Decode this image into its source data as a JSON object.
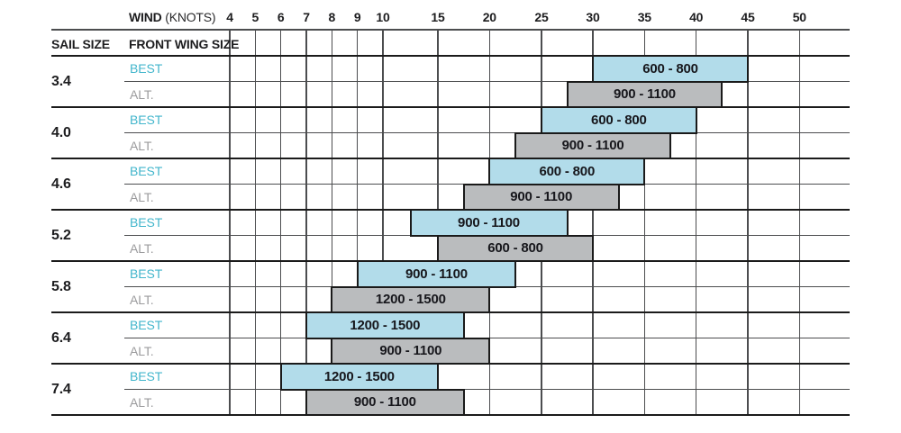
{
  "header": {
    "wind": "WIND",
    "knots": "(KNOTS)",
    "sail_size": "SAIL SIZE",
    "front_wing_size": "FRONT WING SIZE"
  },
  "row_labels": {
    "best": "BEST",
    "alt": "ALT."
  },
  "colors": {
    "best_bar_fill": "#b2dcea",
    "alt_bar_fill": "#babcbe",
    "bar_border": "#1a1a1a",
    "best_label_text": "#43b6cc",
    "alt_label_text": "#9b9b9d",
    "grid_line": "#4c4d4f",
    "group_line": "#1b1b1b",
    "bar_label_text": "#17171c"
  },
  "chart_data": {
    "type": "bar",
    "title": "Sail size vs wind speed — recommended front wing size ranges",
    "xlabel": "WIND (KNOTS)",
    "x_ticks": [
      4,
      5,
      6,
      7,
      8,
      9,
      10,
      15,
      20,
      25,
      30,
      35,
      40,
      45,
      50
    ],
    "x_scale_note": "1-knot column spacing from 4 to 10, 5-knot column spacing from 10 to 50",
    "legend_note": "BEST rows are blue bars, ALT. rows are gray bars; bar label is front wing size range",
    "rows": [
      {
        "sail_size": "3.4",
        "bars": [
          {
            "type": "best",
            "wing_size": "600 - 800",
            "from": 30,
            "to": 45
          },
          {
            "type": "alt",
            "wing_size": "900 - 1100",
            "from": 27.5,
            "to": 42.5
          }
        ]
      },
      {
        "sail_size": "4.0",
        "bars": [
          {
            "type": "best",
            "wing_size": "600 - 800",
            "from": 25,
            "to": 40
          },
          {
            "type": "alt",
            "wing_size": "900 - 1100",
            "from": 22.5,
            "to": 37.5
          }
        ]
      },
      {
        "sail_size": "4.6",
        "bars": [
          {
            "type": "best",
            "wing_size": "600 - 800",
            "from": 20,
            "to": 35
          },
          {
            "type": "alt",
            "wing_size": "900 - 1100",
            "from": 17.5,
            "to": 32.5
          }
        ]
      },
      {
        "sail_size": "5.2",
        "bars": [
          {
            "type": "best",
            "wing_size": "900 - 1100",
            "from": 12.5,
            "to": 27.5
          },
          {
            "type": "alt",
            "wing_size": "600 - 800",
            "from": 15,
            "to": 30
          }
        ]
      },
      {
        "sail_size": "5.8",
        "bars": [
          {
            "type": "best",
            "wing_size": "900 - 1100",
            "from": 9,
            "to": 22.5
          },
          {
            "type": "alt",
            "wing_size": "1200 - 1500",
            "from": 8,
            "to": 20
          }
        ]
      },
      {
        "sail_size": "6.4",
        "bars": [
          {
            "type": "best",
            "wing_size": "1200 - 1500",
            "from": 7,
            "to": 17.5
          },
          {
            "type": "alt",
            "wing_size": "900 - 1100",
            "from": 8,
            "to": 20
          }
        ]
      },
      {
        "sail_size": "7.4",
        "bars": [
          {
            "type": "best",
            "wing_size": "1200 - 1500",
            "from": 6,
            "to": 15
          },
          {
            "type": "alt",
            "wing_size": "900 - 1100",
            "from": 7,
            "to": 17.5
          }
        ]
      }
    ]
  }
}
